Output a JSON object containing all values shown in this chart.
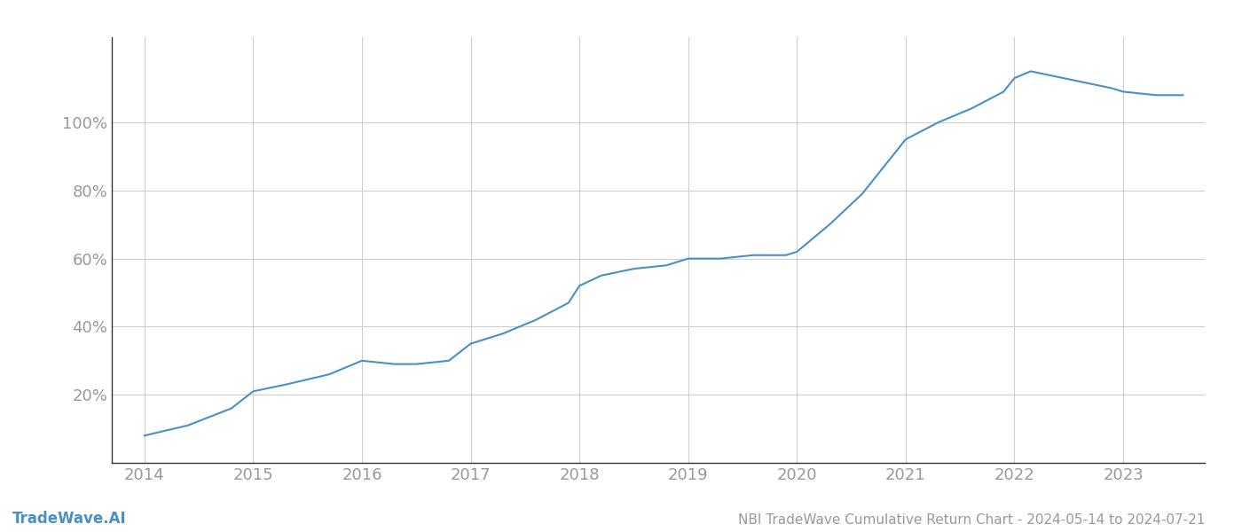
{
  "x_years": [
    2014,
    2014.4,
    2014.8,
    2015,
    2015.3,
    2015.7,
    2016,
    2016.3,
    2016.5,
    2016.8,
    2017,
    2017.3,
    2017.6,
    2017.9,
    2018,
    2018.2,
    2018.5,
    2018.8,
    2019,
    2019.3,
    2019.6,
    2019.9,
    2020,
    2020.3,
    2020.6,
    2021,
    2021.3,
    2021.6,
    2021.9,
    2022,
    2022.15,
    2022.3,
    2022.6,
    2022.9,
    2023,
    2023.3,
    2023.55
  ],
  "y_values": [
    8,
    11,
    16,
    21,
    23,
    26,
    30,
    29,
    29,
    30,
    35,
    38,
    42,
    47,
    52,
    55,
    57,
    58,
    60,
    60,
    61,
    61,
    62,
    70,
    79,
    95,
    100,
    104,
    109,
    113,
    115,
    114,
    112,
    110,
    109,
    108,
    108
  ],
  "line_color": "#4a90c4",
  "line_width": 1.5,
  "background_color": "#ffffff",
  "grid_color": "#cccccc",
  "title": "NBI TradeWave Cumulative Return Chart - 2024-05-14 to 2024-07-21",
  "watermark": "TradeWave.AI",
  "ytick_values": [
    20,
    40,
    60,
    80,
    100
  ],
  "xtick_labels": [
    "2014",
    "2015",
    "2016",
    "2017",
    "2018",
    "2019",
    "2020",
    "2021",
    "2022",
    "2023"
  ],
  "xtick_values": [
    2014,
    2015,
    2016,
    2017,
    2018,
    2019,
    2020,
    2021,
    2022,
    2023
  ],
  "xlim": [
    2013.7,
    2023.75
  ],
  "ylim": [
    0,
    125
  ],
  "tick_color": "#999999",
  "spine_color": "#333333",
  "tick_fontsize": 13,
  "title_fontsize": 11,
  "watermark_fontsize": 12
}
